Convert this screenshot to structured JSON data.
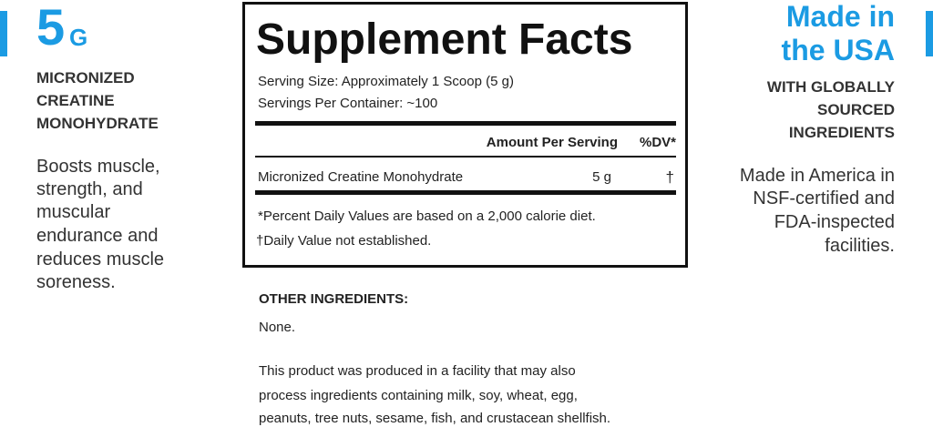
{
  "left": {
    "amount": "5",
    "unit": "G",
    "subtitle_lines": [
      "MICRONIZED",
      "CREATINE",
      "MONOHYDRATE"
    ],
    "body_lines": [
      "Boosts muscle,",
      "strength, and",
      "muscular",
      "endurance and",
      "reduces muscle",
      "soreness."
    ]
  },
  "facts": {
    "title": "Supplement Facts",
    "serving_size": "Serving Size: Approximately 1 Scoop (5 g)",
    "servings_per_container": "Servings Per Container: ~100",
    "header": {
      "amount": "Amount Per Serving",
      "dv": "%DV*"
    },
    "rows": [
      {
        "name": "Micronized Creatine Monohydrate",
        "amount": "5 g",
        "dv": "†"
      }
    ],
    "footnotes": [
      "*Percent Daily Values are based on a 2,000 calorie diet.",
      "†Daily Value not established."
    ]
  },
  "other": {
    "heading": "OTHER INGREDIENTS:",
    "value": "None.",
    "note_lines": [
      "This product was produced in a facility that may also",
      "process ingredients containing milk, soy, wheat, egg,",
      "peanuts, tree nuts, sesame, fish, and crustacean shellfish."
    ]
  },
  "right": {
    "title_lines": [
      "Made in",
      "the USA"
    ],
    "subtitle_lines": [
      "WITH GLOBALLY",
      "SOURCED",
      "INGREDIENTS"
    ],
    "body_lines": [
      "Made in America in",
      "NSF-certified and",
      "FDA-inspected",
      "facilities."
    ]
  }
}
